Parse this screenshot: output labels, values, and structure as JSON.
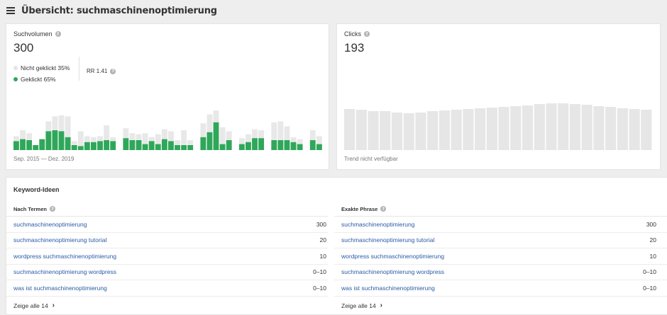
{
  "header": {
    "title": "Übersicht: suchmaschinenoptimierung"
  },
  "colors": {
    "clicked": "#2fa75a",
    "not_clicked": "#e8e8e8",
    "link": "#2a5ba6"
  },
  "search_volume": {
    "label": "Suchvolumen",
    "value": "300",
    "legend_not_clicked": "Nicht geklickt 35%",
    "legend_clicked": "Geklickt 65%",
    "rr": "RR 1.41",
    "date_range": "Sep. 2015 — Dez. 2019"
  },
  "clicks": {
    "label": "Clicks",
    "value": "193",
    "trend_note": "Trend nicht verfügbar"
  },
  "chart_data": [
    {
      "type": "bar",
      "title": "",
      "series": [
        {
          "name": "Geklickt",
          "values": [
            9,
            11,
            10,
            5,
            11,
            19,
            20,
            19,
            13,
            5,
            4,
            8,
            8,
            9,
            10,
            9,
            0,
            12,
            10,
            10,
            6,
            9,
            6,
            11,
            9,
            5,
            5,
            5,
            0,
            13,
            18,
            28,
            6,
            10,
            0,
            6,
            8,
            12,
            12,
            0,
            10,
            10,
            10,
            8,
            6,
            0,
            10,
            6
          ]
        },
        {
          "name": "Nicht geklickt",
          "values": [
            5,
            9,
            7,
            0,
            0,
            10,
            14,
            16,
            21,
            4,
            15,
            6,
            5,
            5,
            15,
            4,
            0,
            10,
            7,
            6,
            11,
            4,
            10,
            10,
            10,
            5,
            15,
            5,
            0,
            14,
            18,
            12,
            17,
            9,
            0,
            6,
            8,
            9,
            8,
            0,
            18,
            19,
            14,
            5,
            5,
            0,
            10,
            8
          ]
        }
      ]
    },
    {
      "type": "bar",
      "title": "",
      "values": [
        58,
        57,
        55,
        55,
        53,
        52,
        53,
        55,
        56,
        57,
        58,
        59,
        60,
        61,
        62,
        63,
        65,
        66,
        66,
        65,
        64,
        62,
        61,
        59,
        58,
        57
      ]
    }
  ],
  "keywords": {
    "title": "Keyword-Ideen",
    "by_terms": {
      "header": "Nach Termen",
      "rows": [
        {
          "keyword": "suchmaschinenoptimierung",
          "volume": "300"
        },
        {
          "keyword": "suchmaschinenoptimierung tutorial",
          "volume": "20"
        },
        {
          "keyword": "wordpress suchmaschinenoptimierung",
          "volume": "10"
        },
        {
          "keyword": "suchmaschinenoptimierung wordpress",
          "volume": "0–10"
        },
        {
          "keyword": "was ist suchmaschinenoptimierung",
          "volume": "0–10"
        }
      ],
      "show_all": "Zeige alle 14"
    },
    "exact_phrase": {
      "header": "Exakte Phrase",
      "rows": [
        {
          "keyword": "suchmaschinenoptimierung",
          "volume": "300"
        },
        {
          "keyword": "suchmaschinenoptimierung tutorial",
          "volume": "20"
        },
        {
          "keyword": "wordpress suchmaschinenoptimierung",
          "volume": "10"
        },
        {
          "keyword": "suchmaschinenoptimierung wordpress",
          "volume": "0–10"
        },
        {
          "keyword": "was ist suchmaschinenoptimierung",
          "volume": "0–10"
        }
      ],
      "show_all": "Zeige alle 14"
    }
  }
}
